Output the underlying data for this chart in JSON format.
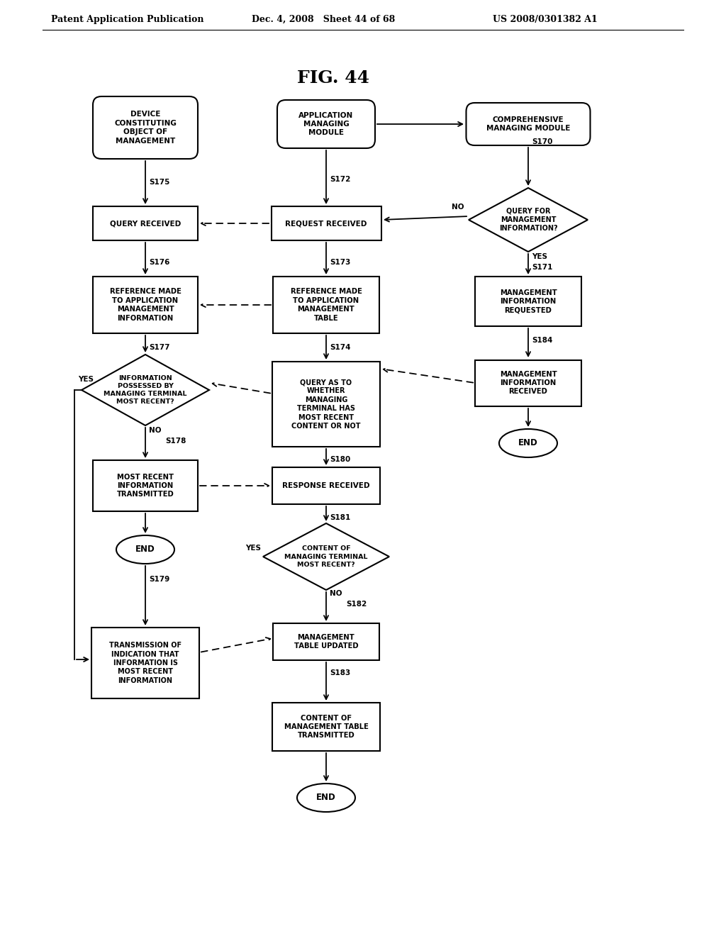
{
  "bg_color": "#ffffff",
  "header_left": "Patent Application Publication",
  "header_mid": "Dec. 4, 2008   Sheet 44 of 68",
  "header_right": "US 2008/0301382 A1",
  "title": "FIG. 44"
}
